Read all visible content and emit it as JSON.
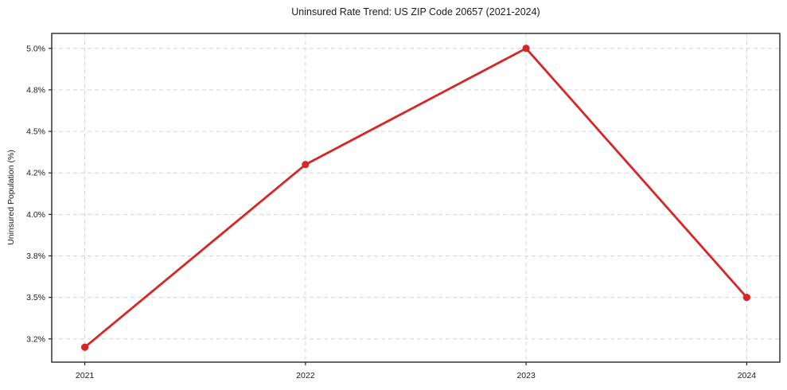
{
  "chart_data": {
    "type": "line",
    "title": "Uninsured Rate Trend: US ZIP Code 20657 (2021-2024)",
    "xlabel": "",
    "ylabel": "Uninsured Population (%)",
    "x": [
      2021,
      2022,
      2023,
      2024
    ],
    "values": [
      3.2,
      4.3,
      5.0,
      3.5
    ],
    "xticks": {
      "values": [
        2021,
        2022,
        2023,
        2024
      ],
      "labels": [
        "2021",
        "2022",
        "2023",
        "2024"
      ]
    },
    "yticks": {
      "values": [
        3.25,
        3.5,
        3.75,
        4.0,
        4.25,
        4.5,
        4.75,
        5.0
      ],
      "labels": [
        "3.2%",
        "3.5%",
        "3.8%",
        "4.0%",
        "4.2%",
        "4.5%",
        "4.8%",
        "5.0%"
      ]
    },
    "xlim": [
      2020.85,
      2024.15
    ],
    "ylim": [
      3.11,
      5.09
    ],
    "grid": true,
    "legend": false,
    "line_color": "#d62728",
    "marker": "circle",
    "marker_color": "#d62728",
    "grid_color": "#d4d4d4",
    "background_color": "#ffffff"
  }
}
